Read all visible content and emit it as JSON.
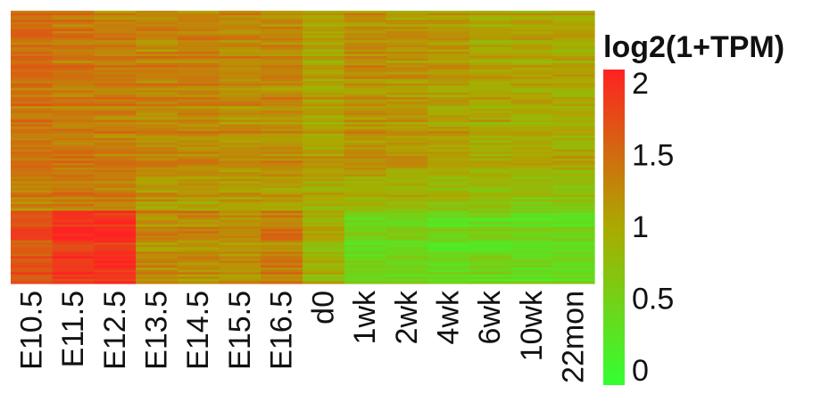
{
  "chart_data": {
    "type": "heatmap",
    "title": "",
    "xlabel": "",
    "ylabel": "",
    "columns": [
      "E10.5",
      "E11.5",
      "E12.5",
      "E13.5",
      "E14.5",
      "E15.5",
      "E16.5",
      "d0",
      "1wk",
      "2wk",
      "4wk",
      "6wk",
      "10wk",
      "22mon"
    ],
    "row_count": 120,
    "row_groups": [
      {
        "rows": 70,
        "column_means": [
          1.45,
          1.4,
          1.35,
          1.3,
          1.3,
          1.25,
          1.25,
          1.05,
          1.2,
          1.15,
          1.1,
          1.0,
          1.0,
          1.0
        ]
      },
      {
        "rows": 18,
        "column_means": [
          1.35,
          1.4,
          1.35,
          1.15,
          1.15,
          1.1,
          1.1,
          1.0,
          0.95,
          0.9,
          0.85,
          0.8,
          0.75,
          0.75
        ]
      },
      {
        "rows": 32,
        "column_means": [
          1.7,
          1.95,
          2.0,
          1.25,
          1.25,
          1.2,
          1.35,
          0.9,
          0.45,
          0.45,
          0.4,
          0.45,
          0.4,
          0.4
        ]
      }
    ],
    "legend": {
      "title": "log2(1+TPM)",
      "ticks": [
        "0",
        "0.5",
        "1",
        "1.5",
        "2"
      ],
      "tick_values": [
        0,
        0.5,
        1,
        1.5,
        2
      ],
      "range": [
        -0.1,
        2.1
      ],
      "placement": "right",
      "colors": [
        "#33ff33",
        "#aaaa00",
        "#ff2222"
      ]
    }
  }
}
